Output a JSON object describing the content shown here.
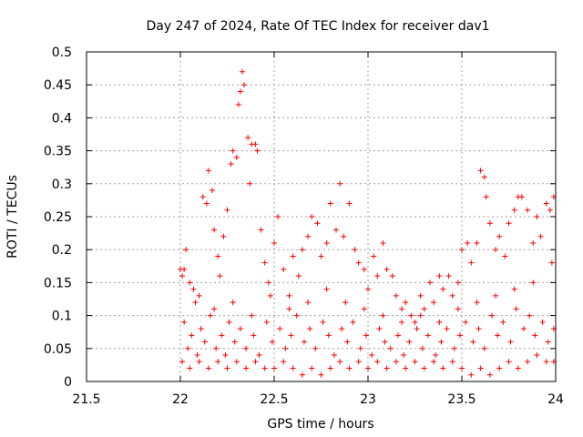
{
  "chart_data": {
    "type": "scatter",
    "title": "Day 247 of 2024, Rate Of TEC Index for receiver dav1",
    "xlabel": "GPS time / hours",
    "ylabel": "ROTI / TECUs",
    "xlim": [
      21.5,
      24
    ],
    "ylim": [
      0,
      0.5
    ],
    "x_ticks": [
      21.5,
      22,
      22.5,
      23,
      23.5,
      24
    ],
    "y_ticks": [
      0,
      0.05,
      0.1,
      0.15,
      0.2,
      0.25,
      0.3,
      0.35,
      0.4,
      0.45,
      0.5
    ],
    "x_tick_labels": [
      "21.5",
      "22",
      "22.5",
      "23",
      "23.5",
      "24"
    ],
    "y_tick_labels": [
      "0",
      "0.05",
      "0.1",
      "0.15",
      "0.2",
      "0.25",
      "0.3",
      "0.35",
      "0.4",
      "0.45",
      "0.5"
    ],
    "grid": true,
    "legend": "none",
    "marker": "plus",
    "color": "#ff0000",
    "series": [
      {
        "name": "dav1",
        "points": [
          [
            22.0,
            0.17
          ],
          [
            22.01,
            0.16
          ],
          [
            22.02,
            0.17
          ],
          [
            22.03,
            0.2
          ],
          [
            22.05,
            0.15
          ],
          [
            22.07,
            0.14
          ],
          [
            22.1,
            0.13
          ],
          [
            22.12,
            0.28
          ],
          [
            22.14,
            0.27
          ],
          [
            22.15,
            0.32
          ],
          [
            22.17,
            0.29
          ],
          [
            22.18,
            0.23
          ],
          [
            22.2,
            0.19
          ],
          [
            22.21,
            0.16
          ],
          [
            22.23,
            0.22
          ],
          [
            22.25,
            0.26
          ],
          [
            22.27,
            0.33
          ],
          [
            22.28,
            0.35
          ],
          [
            22.3,
            0.34
          ],
          [
            22.31,
            0.42
          ],
          [
            22.32,
            0.44
          ],
          [
            22.33,
            0.47
          ],
          [
            22.34,
            0.45
          ],
          [
            22.36,
            0.37
          ],
          [
            22.37,
            0.3
          ],
          [
            22.38,
            0.36
          ],
          [
            22.4,
            0.36
          ],
          [
            22.41,
            0.35
          ],
          [
            22.43,
            0.23
          ],
          [
            22.45,
            0.18
          ],
          [
            22.47,
            0.15
          ],
          [
            22.5,
            0.21
          ],
          [
            22.52,
            0.25
          ],
          [
            22.55,
            0.17
          ],
          [
            22.58,
            0.13
          ],
          [
            22.6,
            0.19
          ],
          [
            22.63,
            0.16
          ],
          [
            22.65,
            0.2
          ],
          [
            22.68,
            0.22
          ],
          [
            22.7,
            0.25
          ],
          [
            22.73,
            0.24
          ],
          [
            22.75,
            0.19
          ],
          [
            22.78,
            0.21
          ],
          [
            22.8,
            0.27
          ],
          [
            22.83,
            0.23
          ],
          [
            22.85,
            0.3
          ],
          [
            22.87,
            0.22
          ],
          [
            22.9,
            0.27
          ],
          [
            22.93,
            0.2
          ],
          [
            22.95,
            0.18
          ],
          [
            22.98,
            0.17
          ],
          [
            23.0,
            0.14
          ],
          [
            23.03,
            0.19
          ],
          [
            23.05,
            0.16
          ],
          [
            23.08,
            0.21
          ],
          [
            23.1,
            0.17
          ],
          [
            23.13,
            0.16
          ],
          [
            23.15,
            0.13
          ],
          [
            23.18,
            0.11
          ],
          [
            23.2,
            0.12
          ],
          [
            23.23,
            0.1
          ],
          [
            23.25,
            0.09
          ],
          [
            23.28,
            0.13
          ],
          [
            23.3,
            0.11
          ],
          [
            23.33,
            0.15
          ],
          [
            23.35,
            0.12
          ],
          [
            23.38,
            0.16
          ],
          [
            23.4,
            0.14
          ],
          [
            23.43,
            0.16
          ],
          [
            23.45,
            0.13
          ],
          [
            23.48,
            0.15
          ],
          [
            23.5,
            0.2
          ],
          [
            23.53,
            0.21
          ],
          [
            23.55,
            0.18
          ],
          [
            23.58,
            0.21
          ],
          [
            23.6,
            0.32
          ],
          [
            23.62,
            0.31
          ],
          [
            23.63,
            0.28
          ],
          [
            23.65,
            0.24
          ],
          [
            23.68,
            0.2
          ],
          [
            23.7,
            0.22
          ],
          [
            23.73,
            0.19
          ],
          [
            23.75,
            0.24
          ],
          [
            23.78,
            0.26
          ],
          [
            23.8,
            0.28
          ],
          [
            23.82,
            0.28
          ],
          [
            23.85,
            0.26
          ],
          [
            23.88,
            0.21
          ],
          [
            23.9,
            0.25
          ],
          [
            23.92,
            0.22
          ],
          [
            23.95,
            0.27
          ],
          [
            23.97,
            0.26
          ],
          [
            23.99,
            0.28
          ],
          [
            22.02,
            0.09
          ],
          [
            22.04,
            0.05
          ],
          [
            22.06,
            0.07
          ],
          [
            22.09,
            0.04
          ],
          [
            22.11,
            0.08
          ],
          [
            22.13,
            0.06
          ],
          [
            22.16,
            0.1
          ],
          [
            22.19,
            0.05
          ],
          [
            22.22,
            0.07
          ],
          [
            22.24,
            0.04
          ],
          [
            22.26,
            0.09
          ],
          [
            22.29,
            0.06
          ],
          [
            22.32,
            0.08
          ],
          [
            22.35,
            0.05
          ],
          [
            22.39,
            0.07
          ],
          [
            22.42,
            0.04
          ],
          [
            22.46,
            0.09
          ],
          [
            22.49,
            0.06
          ],
          [
            22.53,
            0.08
          ],
          [
            22.56,
            0.05
          ],
          [
            22.59,
            0.07
          ],
          [
            22.62,
            0.1
          ],
          [
            22.66,
            0.06
          ],
          [
            22.69,
            0.08
          ],
          [
            22.72,
            0.05
          ],
          [
            22.76,
            0.09
          ],
          [
            22.79,
            0.07
          ],
          [
            22.82,
            0.04
          ],
          [
            22.86,
            0.08
          ],
          [
            22.89,
            0.06
          ],
          [
            22.92,
            0.09
          ],
          [
            22.96,
            0.05
          ],
          [
            22.99,
            0.07
          ],
          [
            23.02,
            0.04
          ],
          [
            23.06,
            0.08
          ],
          [
            23.09,
            0.06
          ],
          [
            23.12,
            0.05
          ],
          [
            23.16,
            0.07
          ],
          [
            23.19,
            0.04
          ],
          [
            23.22,
            0.06
          ],
          [
            23.26,
            0.08
          ],
          [
            23.29,
            0.05
          ],
          [
            23.32,
            0.07
          ],
          [
            23.36,
            0.04
          ],
          [
            23.39,
            0.06
          ],
          [
            23.42,
            0.08
          ],
          [
            23.46,
            0.05
          ],
          [
            23.49,
            0.07
          ],
          [
            23.52,
            0.09
          ],
          [
            23.56,
            0.06
          ],
          [
            23.59,
            0.08
          ],
          [
            23.62,
            0.05
          ],
          [
            23.66,
            0.1
          ],
          [
            23.69,
            0.07
          ],
          [
            23.72,
            0.09
          ],
          [
            23.76,
            0.06
          ],
          [
            23.79,
            0.11
          ],
          [
            23.83,
            0.08
          ],
          [
            23.86,
            0.1
          ],
          [
            23.89,
            0.07
          ],
          [
            23.93,
            0.09
          ],
          [
            23.96,
            0.06
          ],
          [
            23.99,
            0.08
          ],
          [
            22.01,
            0.03
          ],
          [
            22.05,
            0.02
          ],
          [
            22.1,
            0.03
          ],
          [
            22.15,
            0.02
          ],
          [
            22.2,
            0.03
          ],
          [
            22.25,
            0.02
          ],
          [
            22.3,
            0.03
          ],
          [
            22.35,
            0.02
          ],
          [
            22.4,
            0.03
          ],
          [
            22.45,
            0.02
          ],
          [
            22.5,
            0.02
          ],
          [
            22.55,
            0.03
          ],
          [
            22.6,
            0.02
          ],
          [
            22.65,
            0.01
          ],
          [
            22.7,
            0.02
          ],
          [
            22.75,
            0.01
          ],
          [
            22.8,
            0.02
          ],
          [
            22.85,
            0.03
          ],
          [
            22.9,
            0.02
          ],
          [
            22.95,
            0.03
          ],
          [
            23.0,
            0.02
          ],
          [
            23.05,
            0.03
          ],
          [
            23.1,
            0.02
          ],
          [
            23.15,
            0.03
          ],
          [
            23.2,
            0.02
          ],
          [
            23.25,
            0.03
          ],
          [
            23.3,
            0.02
          ],
          [
            23.35,
            0.03
          ],
          [
            23.4,
            0.02
          ],
          [
            23.45,
            0.03
          ],
          [
            23.5,
            0.02
          ],
          [
            23.55,
            0.01
          ],
          [
            23.6,
            0.02
          ],
          [
            23.65,
            0.01
          ],
          [
            23.7,
            0.02
          ],
          [
            23.75,
            0.03
          ],
          [
            23.8,
            0.02
          ],
          [
            23.85,
            0.03
          ],
          [
            23.9,
            0.04
          ],
          [
            23.95,
            0.03
          ],
          [
            23.99,
            0.03
          ],
          [
            22.08,
            0.12
          ],
          [
            22.18,
            0.11
          ],
          [
            22.28,
            0.12
          ],
          [
            22.38,
            0.1
          ],
          [
            22.48,
            0.13
          ],
          [
            22.58,
            0.11
          ],
          [
            22.68,
            0.12
          ],
          [
            22.78,
            0.14
          ],
          [
            22.88,
            0.12
          ],
          [
            22.98,
            0.11
          ],
          [
            23.08,
            0.1
          ],
          [
            23.18,
            0.09
          ],
          [
            23.28,
            0.1
          ],
          [
            23.38,
            0.09
          ],
          [
            23.48,
            0.11
          ],
          [
            23.58,
            0.12
          ],
          [
            23.68,
            0.13
          ],
          [
            23.78,
            0.14
          ],
          [
            23.88,
            0.15
          ],
          [
            23.98,
            0.18
          ]
        ]
      }
    ]
  }
}
